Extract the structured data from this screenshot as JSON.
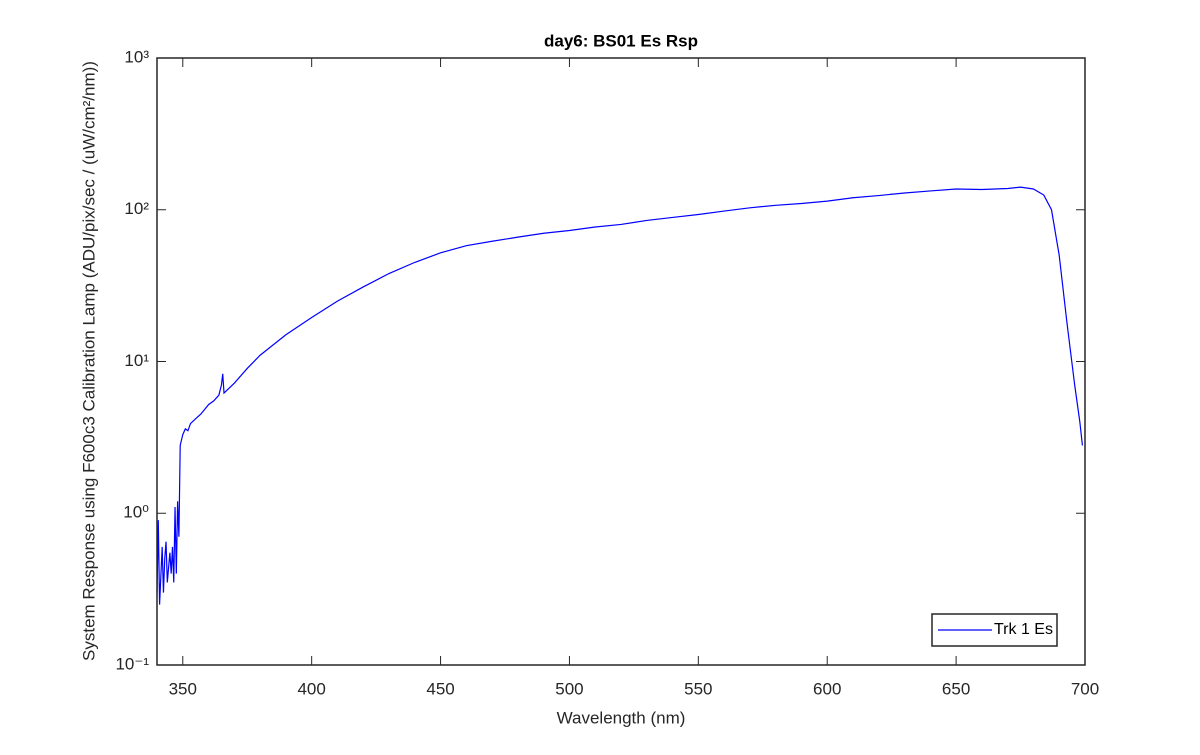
{
  "chart_data": {
    "type": "line",
    "title": "day6: BS01 Es Rsp",
    "x_label": "Wavelength (nm)",
    "y_label": "System Response using F600c3 Calibration Lamp  (ADU/pix/sec / (uW/cm²/nm))",
    "y_scale": "log",
    "legend_position": "lower right",
    "xlim": [
      340,
      700
    ],
    "xticks": [
      350,
      400,
      450,
      500,
      550,
      600,
      650,
      700
    ],
    "ylim": [
      0.1,
      1000
    ],
    "yticks": [
      {
        "value": 0.1,
        "label": "10⁻¹"
      },
      {
        "value": 1,
        "label": "10⁰"
      },
      {
        "value": 10,
        "label": "10¹"
      },
      {
        "value": 100,
        "label": "10²"
      },
      {
        "value": 1000,
        "label": "10³"
      }
    ],
    "x": [
      340,
      340.5,
      341,
      342,
      342.5,
      343,
      343.5,
      344,
      345,
      345.5,
      346,
      346.5,
      347,
      347.5,
      348,
      348.5,
      349,
      350,
      351,
      352,
      353,
      355,
      357,
      360,
      362,
      364,
      365,
      365.5,
      366,
      370,
      375,
      380,
      390,
      400,
      410,
      420,
      430,
      440,
      450,
      460,
      470,
      480,
      490,
      500,
      510,
      520,
      530,
      540,
      550,
      560,
      570,
      580,
      590,
      600,
      610,
      620,
      630,
      640,
      650,
      660,
      670,
      675,
      680,
      684,
      687,
      690,
      693,
      696,
      698,
      699
    ],
    "series": [
      {
        "name": "Trk 1 Es",
        "color": "#0000ff",
        "values": [
          0.3,
          0.9,
          0.25,
          0.6,
          0.3,
          0.5,
          0.65,
          0.35,
          0.55,
          0.4,
          0.6,
          0.35,
          1.1,
          0.4,
          1.2,
          0.7,
          2.8,
          3.3,
          3.6,
          3.5,
          3.9,
          4.2,
          4.5,
          5.2,
          5.5,
          6.0,
          7.0,
          8.3,
          6.2,
          7.2,
          9.0,
          11,
          15,
          19.5,
          25,
          31,
          38,
          45,
          52,
          58,
          62,
          66,
          70,
          73,
          77,
          80,
          85,
          89,
          93,
          98,
          103,
          107,
          110,
          114,
          120,
          124,
          129,
          133,
          137,
          136,
          138,
          141,
          137,
          125,
          100,
          50,
          18,
          7,
          4,
          2.8
        ]
      }
    ]
  }
}
